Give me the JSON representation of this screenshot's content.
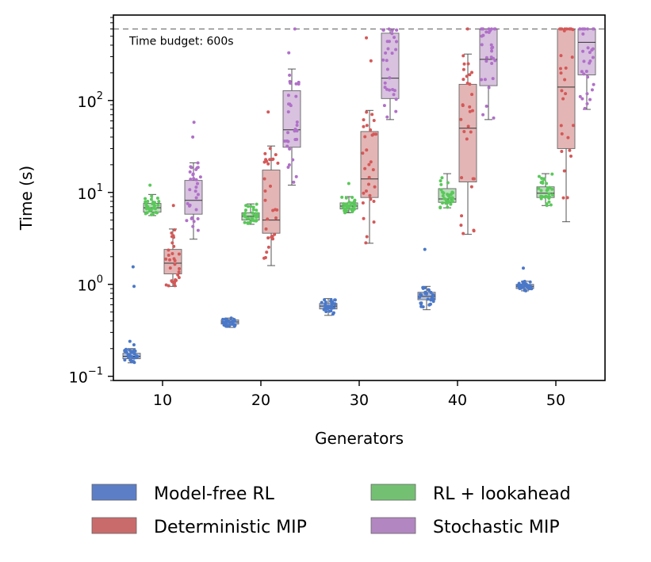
{
  "chart_data": {
    "type": "box",
    "xlabel": "Generators",
    "ylabel": "Time (s)",
    "yscale": "log",
    "ylim": [
      0.09,
      850
    ],
    "y_ticks": [
      {
        "value": 0.1,
        "base": "10",
        "exp": "−1"
      },
      {
        "value": 1,
        "base": "10",
        "exp": "0"
      },
      {
        "value": 10,
        "base": "10",
        "exp": "1"
      },
      {
        "value": 100,
        "base": "10",
        "exp": "2"
      }
    ],
    "categories": [
      "10",
      "20",
      "30",
      "40",
      "50"
    ],
    "time_budget": {
      "value": 600,
      "label": "Time budget: 600s"
    },
    "legend": {
      "placement": "bottom",
      "columns": 2
    },
    "series": [
      {
        "name": "Model-free RL",
        "color": "#4a78c8",
        "box_color": "#5b7ec6",
        "boxes": [
          {
            "category": "10",
            "q1": 0.155,
            "median": 0.165,
            "q3": 0.178,
            "whisker_low": 0.14,
            "whisker_high": 0.2,
            "outliers": [
              0.95,
              1.55,
              0.24,
              0.22
            ]
          },
          {
            "category": "20",
            "q1": 0.37,
            "median": 0.39,
            "q3": 0.41,
            "whisker_low": 0.34,
            "whisker_high": 0.43,
            "outliers": []
          },
          {
            "category": "30",
            "q1": 0.54,
            "median": 0.58,
            "q3": 0.62,
            "whisker_low": 0.46,
            "whisker_high": 0.7,
            "outliers": []
          },
          {
            "category": "40",
            "q1": 0.68,
            "median": 0.74,
            "q3": 0.82,
            "whisker_low": 0.53,
            "whisker_high": 0.95,
            "outliers": [
              2.4
            ]
          },
          {
            "category": "50",
            "q1": 0.9,
            "median": 0.95,
            "q3": 1.0,
            "whisker_low": 0.85,
            "whisker_high": 1.08,
            "outliers": [
              1.5
            ]
          }
        ]
      },
      {
        "name": "RL + lookahead",
        "color": "#5ac85a",
        "box_color": "#74c073",
        "boxes": [
          {
            "category": "10",
            "q1": 6.1,
            "median": 6.8,
            "q3": 7.6,
            "whisker_low": 5.6,
            "whisker_high": 9.5,
            "outliers": [
              12
            ]
          },
          {
            "category": "20",
            "q1": 5.0,
            "median": 5.5,
            "q3": 6.0,
            "whisker_low": 4.5,
            "whisker_high": 7.5,
            "outliers": []
          },
          {
            "category": "30",
            "q1": 6.6,
            "median": 7.1,
            "q3": 7.7,
            "whisker_low": 6.0,
            "whisker_high": 9.0,
            "outliers": [
              12.5
            ]
          },
          {
            "category": "40",
            "q1": 7.8,
            "median": 8.5,
            "q3": 11,
            "whisker_low": 6.8,
            "whisker_high": 16,
            "outliers": []
          },
          {
            "category": "50",
            "q1": 8.8,
            "median": 9.8,
            "q3": 11.5,
            "whisker_low": 7.2,
            "whisker_high": 16,
            "outliers": []
          }
        ]
      },
      {
        "name": "Deterministic MIP",
        "color": "#d45858",
        "box_color": "#c96b6b",
        "boxes": [
          {
            "category": "10",
            "q1": 1.3,
            "median": 1.7,
            "q3": 2.4,
            "whisker_low": 0.95,
            "whisker_high": 4.0,
            "outliers": [
              7.2
            ]
          },
          {
            "category": "20",
            "q1": 3.6,
            "median": 5.0,
            "q3": 17.5,
            "whisker_low": 1.6,
            "whisker_high": 32,
            "outliers": [
              75
            ]
          },
          {
            "category": "30",
            "q1": 8.8,
            "median": 14,
            "q3": 46,
            "whisker_low": 2.8,
            "whisker_high": 78,
            "outliers": [
              270,
              480
            ]
          },
          {
            "category": "40",
            "q1": 13,
            "median": 50,
            "q3": 150,
            "whisker_low": 3.5,
            "whisker_high": 320,
            "outliers": [
              600
            ]
          },
          {
            "category": "50",
            "q1": 30,
            "median": 140,
            "q3": 600,
            "whisker_low": 4.8,
            "whisker_high": 600,
            "outliers": []
          }
        ]
      },
      {
        "name": "Stochastic MIP",
        "color": "#b070c8",
        "box_color": "#b286c0",
        "boxes": [
          {
            "category": "10",
            "q1": 5.8,
            "median": 8.2,
            "q3": 13.5,
            "whisker_low": 3.1,
            "whisker_high": 21,
            "outliers": [
              40,
              58
            ]
          },
          {
            "category": "20",
            "q1": 31,
            "median": 48,
            "q3": 128,
            "whisker_low": 12,
            "whisker_high": 220,
            "outliers": [
              330,
              600
            ]
          },
          {
            "category": "30",
            "q1": 105,
            "median": 175,
            "q3": 540,
            "whisker_low": 62,
            "whisker_high": 600,
            "outliers": []
          },
          {
            "category": "40",
            "q1": 145,
            "median": 280,
            "q3": 600,
            "whisker_low": 62,
            "whisker_high": 600,
            "outliers": []
          },
          {
            "category": "50",
            "q1": 190,
            "median": 430,
            "q3": 600,
            "whisker_low": 80,
            "whisker_high": 600,
            "outliers": []
          }
        ]
      }
    ]
  }
}
